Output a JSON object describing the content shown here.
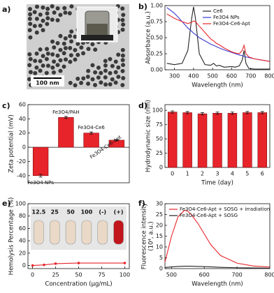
{
  "chart_data": [
    {
      "type": "image",
      "panel": "a)",
      "scale_bar": "100 nm"
    },
    {
      "type": "line",
      "panel": "b)",
      "xlabel": "Wavelength (nm)",
      "ylabel": "Absorbance (a.u.)",
      "x": [
        260,
        300,
        340,
        370,
        390,
        400,
        410,
        430,
        460,
        490,
        505,
        520,
        535,
        560,
        600,
        620,
        640,
        655,
        665,
        675,
        690,
        720,
        760,
        800
      ],
      "series": [
        {
          "name": "Ce6",
          "color": "#222222",
          "values": [
            0.1,
            0.08,
            0.1,
            0.3,
            0.8,
            0.98,
            0.8,
            0.25,
            0.08,
            0.07,
            0.1,
            0.06,
            0.07,
            0.04,
            0.05,
            0.04,
            0.06,
            0.15,
            0.3,
            0.1,
            0.02,
            0.01,
            0.01,
            0.01
          ]
        },
        {
          "name": "Fe3O4 NPs",
          "color": "#3a3ad0",
          "values": [
            0.97,
            0.88,
            0.75,
            0.65,
            0.6,
            0.57,
            0.55,
            0.5,
            0.45,
            0.4,
            0.38,
            0.36,
            0.34,
            0.31,
            0.27,
            0.25,
            0.23,
            0.22,
            0.21,
            0.2,
            0.19,
            0.17,
            0.15,
            0.13
          ]
        },
        {
          "name": "Fe3O4-Ce6-Apt",
          "color": "#e8242b",
          "values": [
            0.87,
            0.8,
            0.75,
            0.72,
            0.74,
            0.76,
            0.75,
            0.68,
            0.58,
            0.48,
            0.45,
            0.41,
            0.39,
            0.34,
            0.28,
            0.26,
            0.25,
            0.3,
            0.38,
            0.25,
            0.2,
            0.17,
            0.15,
            0.13
          ]
        }
      ],
      "xlim": [
        250,
        800
      ],
      "xticks": [
        300,
        400,
        500,
        600,
        700,
        800
      ],
      "ylim": [
        0,
        1.0
      ],
      "yticks": [
        {
          "value": 0,
          "label": "0.00"
        },
        {
          "value": 0.25,
          "label": "0.25"
        },
        {
          "value": 0.5,
          "label": "0.50"
        },
        {
          "value": 0.75,
          "label": "0.75"
        },
        {
          "value": 1.0,
          "label": "1.00"
        }
      ],
      "legend": "upper right"
    },
    {
      "type": "bar",
      "panel": "c)",
      "ylabel": "Zeta potential (mV)",
      "categories": [
        "Fe3O4 NPs",
        "Fe3O4/PAH",
        "Fe3O4-Ce6",
        "Fe3O4-Ce6-Apt"
      ],
      "values": [
        -40,
        42,
        20,
        10
      ],
      "errors": [
        2,
        1.5,
        1.5,
        1
      ],
      "color": "#e8242b",
      "ylim": [
        -50,
        60
      ],
      "yticks": [
        -40,
        -20,
        0,
        20,
        40,
        60
      ]
    },
    {
      "type": "bar",
      "panel": "d)",
      "xlabel": "Time (day)",
      "ylabel": "Hydrodynamic size (nm)",
      "categories": [
        "0",
        "1",
        "2",
        "3",
        "4",
        "5",
        "6"
      ],
      "values": [
        97,
        96,
        94,
        95,
        95,
        96,
        96
      ],
      "errors": [
        2,
        2,
        2,
        2,
        2,
        2,
        2
      ],
      "color": "#e8242b",
      "ylim": [
        0,
        110
      ],
      "yticks": [
        0,
        25,
        50,
        75,
        100
      ]
    },
    {
      "type": "line",
      "panel": "e)",
      "xlabel": "Concentration (μg/mL)",
      "ylabel": "Hemolysis Percentage (%)",
      "x": [
        0,
        12.5,
        25,
        50,
        100
      ],
      "values": [
        0,
        1,
        3,
        4,
        4
      ],
      "color": "#e8242b",
      "markers": true,
      "annotations": [
        "12.5",
        "25",
        "50",
        "100",
        "(-)",
        "(+)"
      ],
      "xlim": [
        -5,
        105
      ],
      "xticks": [
        0,
        25,
        50,
        75,
        100
      ],
      "ylim": [
        -5,
        100
      ],
      "yticks": [
        0,
        20,
        40,
        60,
        80,
        100
      ]
    },
    {
      "type": "line",
      "panel": "f)",
      "xlabel": "Wavelength (nm)",
      "ylabel": "Fluorescence intensity",
      "ylabel_unit": "(10⁴, a.u.)",
      "x": [
        480,
        500,
        520,
        540,
        550,
        560,
        580,
        600,
        620,
        650,
        700,
        750,
        800
      ],
      "series": [
        {
          "name": "Fe3O4-Ce6-Apt + SOSG + irradiation",
          "color": "#e8242b",
          "values": [
            3,
            15,
            24,
            27,
            26.5,
            25,
            21,
            16,
            11,
            6,
            2.5,
            1.2,
            0.7
          ]
        },
        {
          "name": "Fe3O4-Ce6-Apt + SOSG",
          "color": "#222222",
          "values": [
            0.5,
            0.8,
            1,
            1.1,
            1.1,
            1.1,
            1,
            0.9,
            0.8,
            0.6,
            0.4,
            0.3,
            0.2
          ]
        }
      ],
      "xlim": [
        480,
        800
      ],
      "xticks": [
        500,
        600,
        700,
        800
      ],
      "ylim": [
        0,
        30
      ],
      "yticks": [
        0,
        5,
        10,
        15,
        20,
        25,
        30
      ],
      "legend": "upper left"
    }
  ]
}
